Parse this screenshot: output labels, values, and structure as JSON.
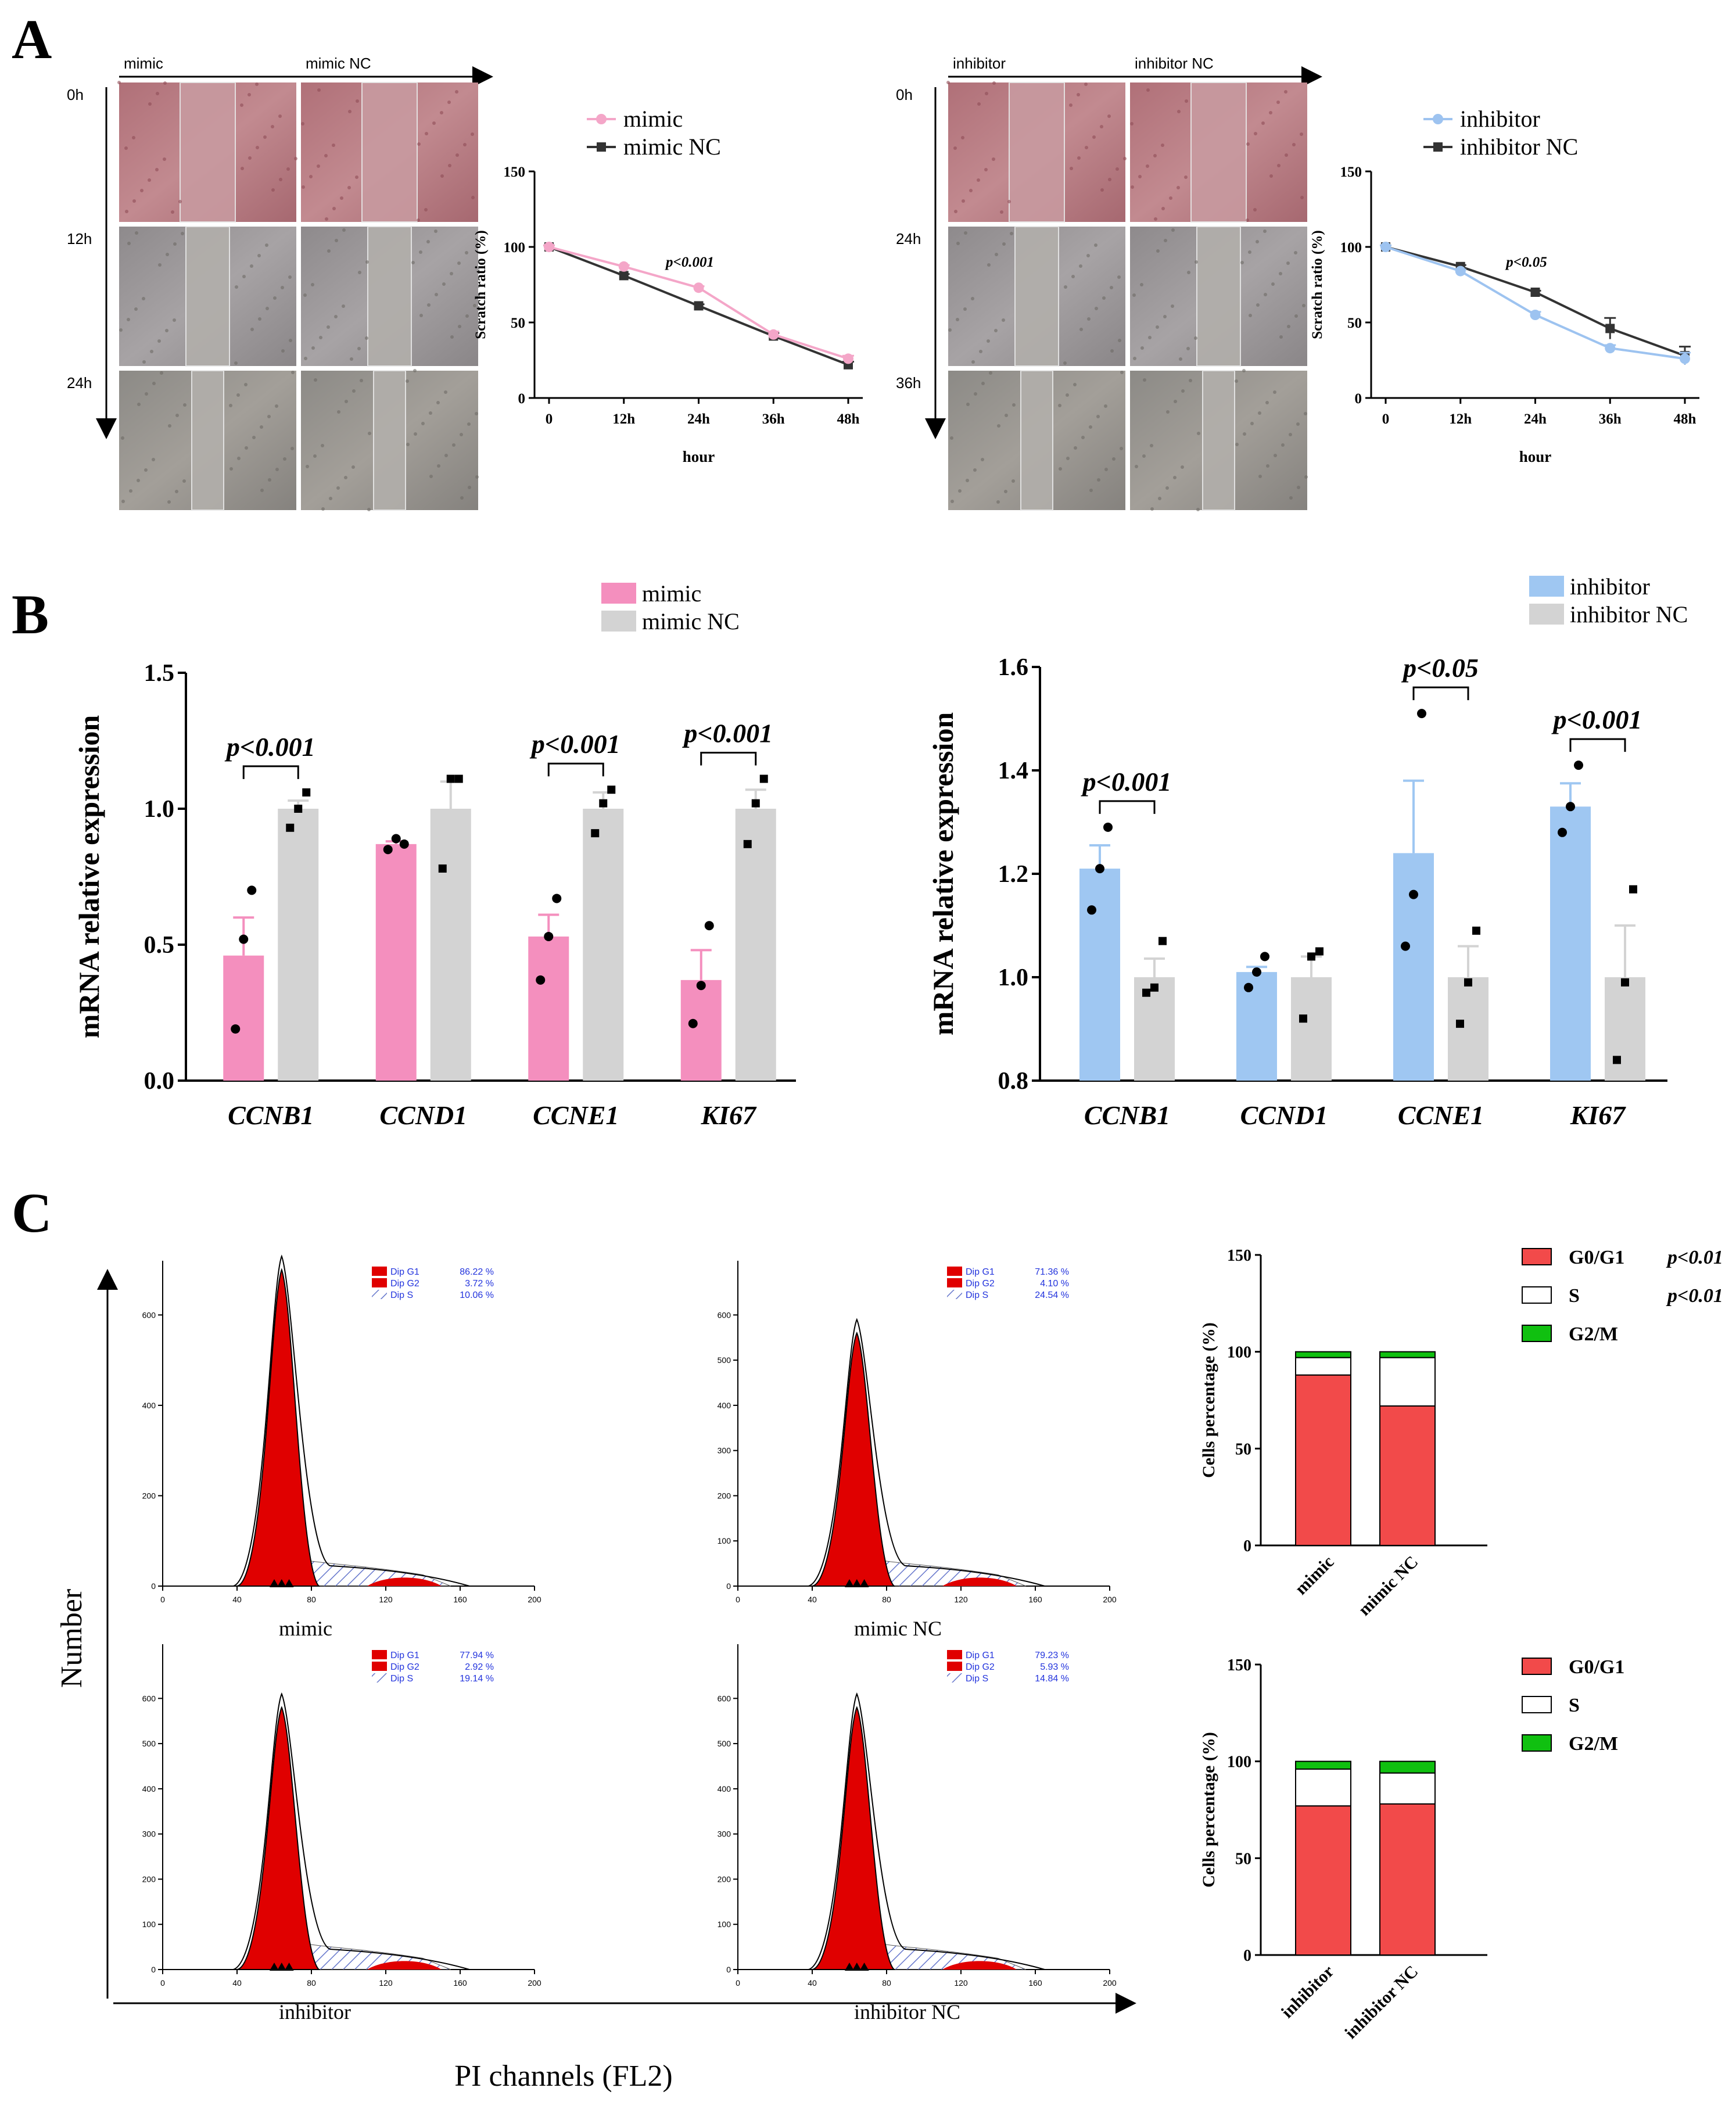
{
  "panel_letters": {
    "a": "A",
    "b": "B",
    "c": "C"
  },
  "colors": {
    "mimic": "#f4a6c8",
    "mimic_bar": "#f48fbe",
    "inhibitor": "#9dc3f0",
    "inhibitor_bar": "#9fc7f2",
    "nc_bar": "#d3d3d3",
    "nc_line": "#333333",
    "g0g1": "#f24a4a",
    "s": "#ffffff",
    "g2m": "#10c010",
    "flow_fill": "#e00000",
    "hatch": "#6677cc",
    "dip_text": "#2233dd"
  },
  "scratch": {
    "left": {
      "col_labels": [
        "mimic",
        "mimic   NC"
      ],
      "row_labels": [
        "0h",
        "12h",
        "24h"
      ]
    },
    "right": {
      "col_labels": [
        "inhibitor",
        "inhibitor NC"
      ],
      "row_labels": [
        "0h",
        "24h",
        "36h"
      ]
    }
  },
  "flow": {
    "axis_label_y": "Number",
    "axis_label_x": "PI channels (FL2)",
    "panels": [
      {
        "name": "mimic",
        "g1": "86.22 %",
        "g2": "3.72 %",
        "s": "10.06 %",
        "ymax": 600,
        "yticks": [
          0,
          200,
          400,
          600
        ],
        "peak": 700
      },
      {
        "name": "mimic NC",
        "g1": "71.36 %",
        "g2": "4.10 %",
        "s": "24.54 %",
        "ymax": 600,
        "yticks": [
          0,
          100,
          200,
          300,
          400,
          500,
          600
        ],
        "peak": 560
      },
      {
        "name": "inhibitor",
        "g1": "77.94 %",
        "g2": "2.92 %",
        "s": "19.14 %",
        "ymax": 600,
        "yticks": [
          0,
          100,
          200,
          300,
          400,
          500,
          600
        ],
        "peak": 580
      },
      {
        "name": "inhibitor NC",
        "g1": "79.23 %",
        "g2": "5.93 %",
        "s": "14.84 %",
        "ymax": 600,
        "yticks": [
          0,
          100,
          200,
          300,
          400,
          500,
          600
        ],
        "peak": 580
      }
    ],
    "legend_labels": {
      "g1": "Dip G1",
      "g2": "Dip G2",
      "s": "Dip S"
    },
    "xticks": [
      0,
      40,
      80,
      120,
      160,
      200
    ]
  },
  "chart_data": [
    {
      "id": "scratch_mimic",
      "type": "line",
      "categories": [
        "0",
        "12h",
        "24h",
        "36h",
        "48h"
      ],
      "series": [
        {
          "name": "mimic",
          "values": [
            100,
            87,
            73,
            42,
            26
          ],
          "err": [
            1,
            1,
            1,
            2,
            2
          ]
        },
        {
          "name": "mimic NC",
          "values": [
            100,
            81,
            61,
            41,
            22
          ],
          "err": [
            1,
            1,
            1,
            2,
            2
          ]
        }
      ],
      "ylabel": "Scratch ratio (%)",
      "xlabel": "hour",
      "ylim": [
        0,
        150
      ],
      "yticks": [
        0,
        50,
        100,
        150
      ],
      "annotation": "p<0.001"
    },
    {
      "id": "scratch_inhibitor",
      "type": "line",
      "categories": [
        "0",
        "12h",
        "24h",
        "36h",
        "48h"
      ],
      "series": [
        {
          "name": "inhibitor",
          "values": [
            100,
            84,
            55,
            33,
            26
          ],
          "err": [
            1,
            1,
            2,
            2,
            4
          ]
        },
        {
          "name": "inhibitor NC",
          "values": [
            100,
            87,
            70,
            46,
            28
          ],
          "err": [
            1,
            1,
            1,
            7,
            6
          ]
        }
      ],
      "ylabel": "Scratch ratio (%)",
      "xlabel": "hour",
      "ylim": [
        0,
        150
      ],
      "yticks": [
        0,
        50,
        100,
        150
      ],
      "annotation": "p<0.05"
    },
    {
      "id": "mrna_mimic",
      "type": "bar",
      "categories": [
        "CCNB1",
        "CCND1",
        "CCNE1",
        "KI67"
      ],
      "series": [
        {
          "name": "mimic",
          "values": [
            0.46,
            0.87,
            0.53,
            0.37
          ],
          "err": [
            0.14,
            0.01,
            0.08,
            0.11
          ],
          "points": [
            [
              0.19,
              0.52,
              0.7
            ],
            [
              0.85,
              0.89,
              0.87
            ],
            [
              0.37,
              0.53,
              0.67
            ],
            [
              0.21,
              0.35,
              0.57
            ]
          ]
        },
        {
          "name": "mimic NC",
          "values": [
            1.0,
            1.0,
            1.0,
            1.0
          ],
          "err": [
            0.03,
            0.1,
            0.06,
            0.07
          ],
          "points": [
            [
              0.93,
              1.0,
              1.06
            ],
            [
              0.78,
              1.11,
              1.11
            ],
            [
              0.91,
              1.02,
              1.07
            ],
            [
              0.87,
              1.02,
              1.11
            ]
          ]
        }
      ],
      "ylabel": "mRNA relative expression",
      "ylim": [
        0,
        1.5
      ],
      "yticks": [
        "0.0",
        "0.5",
        "1.0",
        "1.5"
      ],
      "brackets": [
        {
          "cat": 0,
          "text": "p<0.001"
        },
        {
          "cat": 2,
          "text": "p<0.001"
        },
        {
          "cat": 3,
          "text": "p<0.001"
        }
      ]
    },
    {
      "id": "mrna_inhibitor",
      "type": "bar",
      "categories": [
        "CCNB1",
        "CCND1",
        "CCNE1",
        "KI67"
      ],
      "series": [
        {
          "name": "inhibitor",
          "values": [
            1.21,
            1.01,
            1.24,
            1.33
          ],
          "err": [
            0.045,
            0.01,
            0.14,
            0.045
          ],
          "points": [
            [
              1.13,
              1.21,
              1.29
            ],
            [
              0.98,
              1.01,
              1.04
            ],
            [
              1.06,
              1.16,
              1.51
            ],
            [
              1.28,
              1.33,
              1.41
            ]
          ]
        },
        {
          "name": "inhibitor NC",
          "values": [
            1.0,
            1.0,
            1.0,
            1.0
          ],
          "err": [
            0.036,
            0.04,
            0.06,
            0.1
          ],
          "points": [
            [
              0.97,
              0.98,
              1.07
            ],
            [
              0.92,
              1.04,
              1.05
            ],
            [
              0.91,
              0.99,
              1.09
            ],
            [
              0.84,
              0.99,
              1.17
            ]
          ]
        }
      ],
      "ylabel": "mRNA relative expression",
      "ylim": [
        0.8,
        1.6
      ],
      "yticks": [
        "0.8",
        "1.0",
        "1.2",
        "1.4",
        "1.6"
      ],
      "brackets": [
        {
          "cat": 0,
          "text": "p<0.001"
        },
        {
          "cat": 2,
          "text": "p<0.05"
        },
        {
          "cat": 3,
          "text": "p<0.001"
        }
      ]
    },
    {
      "id": "cycle_mimic",
      "type": "bar",
      "stacked": true,
      "categories": [
        "mimic",
        "mimic  NC"
      ],
      "series": [
        {
          "name": "G0/G1",
          "values": [
            88,
            72
          ]
        },
        {
          "name": "S",
          "values": [
            9,
            25
          ]
        },
        {
          "name": "G2/M",
          "values": [
            3,
            3
          ]
        }
      ],
      "ylabel": "Cells percentage (%)",
      "ylim": [
        0,
        150
      ],
      "yticks": [
        0,
        50,
        100,
        150
      ],
      "legend_p": [
        "p<0.01",
        "p<0.01",
        ""
      ]
    },
    {
      "id": "cycle_inhibitor",
      "type": "bar",
      "stacked": true,
      "categories": [
        "inhibitor",
        "inhibitor NC"
      ],
      "series": [
        {
          "name": "G0/G1",
          "values": [
            77,
            78
          ]
        },
        {
          "name": "S",
          "values": [
            19,
            16
          ]
        },
        {
          "name": "G2/M",
          "values": [
            4,
            6
          ]
        }
      ],
      "ylabel": "Cells percentage (%)",
      "ylim": [
        0,
        150
      ],
      "yticks": [
        0,
        50,
        100,
        150
      ],
      "legend_p": [
        "",
        "",
        ""
      ]
    }
  ]
}
